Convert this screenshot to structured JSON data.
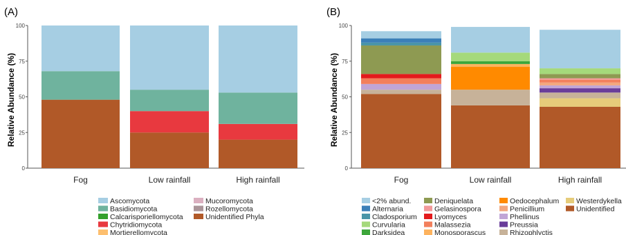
{
  "chart_data": [
    {
      "type": "bar",
      "stacked": true,
      "panel_label": "(A)",
      "ylabel": "Relative Abundance (%)",
      "ylim": [
        0,
        100
      ],
      "yticks": [
        0,
        25,
        50,
        75,
        100
      ],
      "categories": [
        "Fog",
        "Low rainfall",
        "High rainfall"
      ],
      "series": [
        {
          "name": "Ascomycota",
          "color": "#a6cee3",
          "values": [
            32,
            45,
            47
          ]
        },
        {
          "name": "Basidiomycota",
          "color": "#6fb39e",
          "values": [
            20,
            15,
            22
          ]
        },
        {
          "name": "Calcarisporiellomycota",
          "color": "#33a02c",
          "values": [
            0,
            0,
            0
          ]
        },
        {
          "name": "Chytridiomycota",
          "color": "#e8393f",
          "values": [
            0,
            15,
            11
          ]
        },
        {
          "name": "Mortierellomycota",
          "color": "#fdbf6f",
          "values": [
            0,
            0,
            0
          ]
        },
        {
          "name": "Mucoromycota",
          "color": "#dbb0c0",
          "values": [
            0,
            0,
            0
          ]
        },
        {
          "name": "Rozellomycota",
          "color": "#ab9599",
          "values": [
            0,
            0,
            0
          ]
        },
        {
          "name": "Unidentified Phyla",
          "color": "#b15928",
          "values": [
            48,
            25,
            20
          ]
        }
      ],
      "legend_order": [
        "Unidentified Phyla",
        "Rozellomycota",
        "Mucoromycota",
        "Mortierellomycota",
        "Chytridiomycota",
        "Calcarisporiellomycota",
        "Basidiomycota",
        "Ascomycota"
      ],
      "legend_columns": [
        [
          "Ascomycota",
          "Basidiomycota",
          "Calcarisporiellomycota",
          "Chytridiomycota",
          "Mortierellomycota"
        ],
        [
          "Mucoromycota",
          "Rozellomycota",
          "Unidentified Phyla"
        ]
      ],
      "grid": false,
      "legend_position": "bottom"
    },
    {
      "type": "bar",
      "stacked": true,
      "panel_label": "(B)",
      "ylabel": "Relative Abundance (%)",
      "ylim": [
        0,
        100
      ],
      "yticks": [
        0,
        25,
        50,
        75,
        100
      ],
      "categories": [
        "Fog",
        "Low rainfall",
        "High rainfall"
      ],
      "series": [
        {
          "name": "<2% abund.",
          "color": "#a6cee3",
          "values": [
            5,
            18,
            27
          ]
        },
        {
          "name": "Alternaria",
          "color": "#3b7fb8",
          "values": [
            3,
            0,
            0
          ]
        },
        {
          "name": "Cladosporium",
          "color": "#4a95a8",
          "values": [
            2,
            0,
            0
          ]
        },
        {
          "name": "Curvularia",
          "color": "#a5d97b",
          "values": [
            0,
            6,
            4
          ]
        },
        {
          "name": "Darksidea",
          "color": "#3da63b",
          "values": [
            0,
            2,
            0
          ]
        },
        {
          "name": "Deniquelata",
          "color": "#8e9a52",
          "values": [
            20,
            0,
            3
          ]
        },
        {
          "name": "Gelasinospora",
          "color": "#f39a9a",
          "values": [
            0,
            0,
            1
          ]
        },
        {
          "name": "Lyomyces",
          "color": "#e31a1c",
          "values": [
            3,
            0,
            0
          ]
        },
        {
          "name": "Malassezia",
          "color": "#f27f5c",
          "values": [
            4,
            0,
            2
          ]
        },
        {
          "name": "Monosporascus",
          "color": "#fdb35e",
          "values": [
            0,
            2,
            0
          ]
        },
        {
          "name": "Oedocephalum",
          "color": "#ff8a00",
          "values": [
            0,
            16,
            0
          ]
        },
        {
          "name": "Penicillium",
          "color": "#f2a77e",
          "values": [
            0,
            0,
            2
          ]
        },
        {
          "name": "Phellinus",
          "color": "#c0a5d6",
          "values": [
            4,
            0,
            2
          ]
        },
        {
          "name": "Preussia",
          "color": "#6a3d9a",
          "values": [
            0,
            0,
            3
          ]
        },
        {
          "name": "Rhizophlyctis",
          "color": "#c7b299",
          "values": [
            3,
            11,
            4
          ]
        },
        {
          "name": "Westerdykella",
          "color": "#e6cc7a",
          "values": [
            0,
            0,
            6
          ]
        },
        {
          "name": "Unidentified",
          "color": "#b15928",
          "values": [
            52,
            44,
            43
          ]
        }
      ],
      "legend_columns": [
        [
          "<2% abund.",
          "Alternaria",
          "Cladosporium",
          "Curvularia",
          "Darksidea"
        ],
        [
          "Deniquelata",
          "Gelasinospora",
          "Lyomyces",
          "Malassezia",
          "Monosporascus"
        ],
        [
          "Oedocephalum",
          "Penicillium",
          "Phellinus",
          "Preussia",
          "Rhizophlyctis"
        ],
        [
          "Westerdykella",
          "Unidentified"
        ]
      ],
      "grid": false,
      "legend_position": "bottom"
    }
  ]
}
